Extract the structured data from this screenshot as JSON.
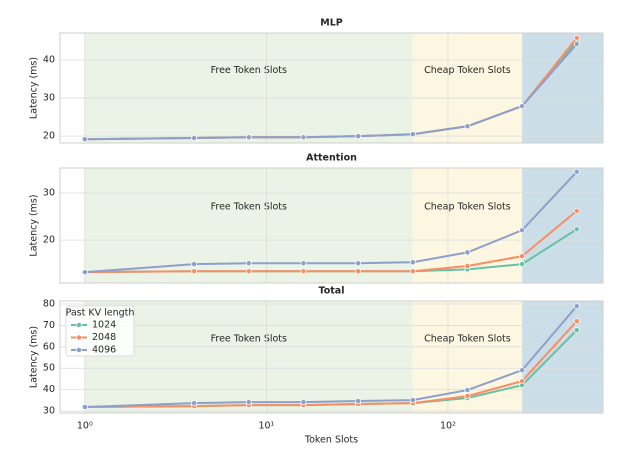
{
  "chart_data": [
    {
      "type": "line",
      "title": "MLP",
      "ylabel": "Latency (ms)",
      "xscale": "log",
      "x": [
        1,
        4,
        8,
        16,
        32,
        64,
        128,
        256,
        512
      ],
      "xlim": [
        0.73,
        714
      ],
      "xticks": [
        1,
        10,
        100
      ],
      "ylim": [
        18.2,
        47.1
      ],
      "yticks": [
        20,
        30,
        40
      ],
      "grid": true,
      "regions": [
        {
          "label": "Free Token Slots",
          "x": [
            1,
            64
          ],
          "color": "#eaf3e6"
        },
        {
          "label": "Cheap Token Slots",
          "x": [
            64,
            256
          ],
          "color": "#fdf6e1"
        },
        {
          "x": [
            256,
            714
          ],
          "color": "#cbdee7"
        }
      ],
      "series": [
        {
          "color": "#66c2a5",
          "values": [
            19.2,
            19.5,
            19.7,
            19.7,
            20.0,
            20.5,
            22.6,
            27.9,
            45.0
          ]
        },
        {
          "color": "#fc8d62",
          "values": [
            19.2,
            19.5,
            19.7,
            19.7,
            20.0,
            20.5,
            22.6,
            27.9,
            45.8
          ]
        },
        {
          "color": "#8da0cb",
          "values": [
            19.2,
            19.5,
            19.7,
            19.7,
            20.0,
            20.5,
            22.6,
            27.9,
            44.2
          ]
        }
      ]
    },
    {
      "type": "line",
      "title": "Attention",
      "ylabel": "Latency (ms)",
      "xscale": "log",
      "x": [
        1,
        4,
        8,
        16,
        32,
        64,
        128,
        256,
        512
      ],
      "xlim": [
        0.73,
        714
      ],
      "xticks": [
        1,
        10,
        100
      ],
      "ylim": [
        10.9,
        35.3
      ],
      "yticks": [
        20,
        30
      ],
      "grid": true,
      "regions": [
        {
          "label": "Free Token Slots",
          "x": [
            1,
            64
          ],
          "color": "#eaf3e6"
        },
        {
          "label": "Cheap Token Slots",
          "x": [
            64,
            256
          ],
          "color": "#fdf6e1"
        },
        {
          "x": [
            256,
            714
          ],
          "color": "#cbdee7"
        }
      ],
      "series": [
        {
          "color": "#66c2a5",
          "values": [
            13.2,
            13.4,
            13.4,
            13.4,
            13.4,
            13.4,
            13.8,
            14.9,
            22.3
          ]
        },
        {
          "color": "#fc8d62",
          "values": [
            13.2,
            13.4,
            13.4,
            13.4,
            13.4,
            13.4,
            14.5,
            16.6,
            26.2
          ]
        },
        {
          "color": "#8da0cb",
          "values": [
            13.2,
            14.9,
            15.1,
            15.1,
            15.1,
            15.3,
            17.4,
            22.1,
            34.5
          ]
        }
      ]
    },
    {
      "type": "line",
      "title": "Total",
      "ylabel": "Latency (ms)",
      "xlabel": "Token Slots",
      "xscale": "log",
      "x": [
        1,
        4,
        8,
        16,
        32,
        64,
        128,
        256,
        512
      ],
      "xlim": [
        0.73,
        714
      ],
      "xticks": [
        {
          "value": 1,
          "label": "10⁰"
        },
        {
          "value": 10,
          "label": "10¹"
        },
        {
          "value": 100,
          "label": "10²"
        }
      ],
      "ylim": [
        29.1,
        81.4
      ],
      "yticks": [
        30,
        40,
        50,
        60,
        70,
        80
      ],
      "grid": true,
      "legend": "upper left",
      "legend_title": "Past KV length",
      "regions": [
        {
          "label": "Free Token Slots",
          "x": [
            1,
            64
          ],
          "color": "#eaf3e6"
        },
        {
          "label": "Cheap Token Slots",
          "x": [
            64,
            256
          ],
          "color": "#fdf6e1"
        },
        {
          "x": [
            256,
            714
          ],
          "color": "#cbdee7"
        }
      ],
      "series": [
        {
          "name": "1024",
          "color": "#66c2a5",
          "values": [
            31.9,
            32.3,
            32.8,
            32.8,
            33.3,
            33.7,
            36.1,
            42.1,
            67.8
          ]
        },
        {
          "name": "2048",
          "color": "#fc8d62",
          "values": [
            31.9,
            32.3,
            32.8,
            32.8,
            33.3,
            33.7,
            37.0,
            44.0,
            72.0
          ]
        },
        {
          "name": "4096",
          "color": "#8da0cb",
          "values": [
            31.9,
            33.7,
            34.2,
            34.2,
            34.7,
            35.1,
            39.8,
            49.1,
            79.0
          ]
        }
      ]
    }
  ]
}
